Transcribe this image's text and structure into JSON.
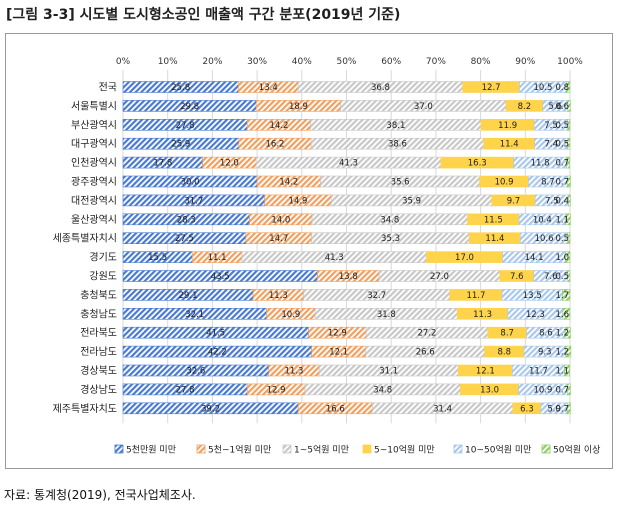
{
  "figure": {
    "title": "[그림 3-3] 시도별 도시형소공인 매출액 구간 분포(2019년 기준)",
    "source": "자료: 통계청(2019), 전국사업체조사."
  },
  "chart_data": {
    "type": "bar",
    "orientation": "horizontal",
    "stacked": true,
    "percent": true,
    "title": "[그림 3-3] 시도별 도시형소공인 매출액 구간 분포(2019년 기준)",
    "xlim": [
      0,
      100
    ],
    "x_ticks": [
      "0%",
      "10%",
      "20%",
      "30%",
      "40%",
      "50%",
      "60%",
      "70%",
      "80%",
      "90%",
      "100%"
    ],
    "grid": true,
    "legend_position": "bottom",
    "categories": [
      "전국",
      "서울특별시",
      "부산광역시",
      "대구광역시",
      "인천광역시",
      "광주광역시",
      "대전광역시",
      "울산광역시",
      "세종특별자치시",
      "경기도",
      "강원도",
      "충청북도",
      "충청남도",
      "전라북도",
      "전라남도",
      "경상북도",
      "경상남도",
      "제주특별자치도"
    ],
    "series": [
      {
        "name": "5천만원 미만",
        "color": "#4a7bd0",
        "pattern": "hatch",
        "values": [
          25.8,
          29.8,
          27.8,
          25.9,
          17.8,
          30.0,
          31.7,
          28.3,
          27.5,
          15.5,
          43.5,
          29.1,
          32.1,
          41.5,
          42.2,
          32.6,
          27.8,
          39.2
        ]
      },
      {
        "name": "5천~1억원 미만",
        "color": "#f0a060",
        "pattern": "hatch",
        "values": [
          13.4,
          18.9,
          14.2,
          16.2,
          12.0,
          14.2,
          14.9,
          14.0,
          14.7,
          11.1,
          13.8,
          11.3,
          10.9,
          12.9,
          12.1,
          11.3,
          12.9,
          16.6
        ]
      },
      {
        "name": "1~5억원 미만",
        "color": "#c8c8c8",
        "pattern": "hatch",
        "values": [
          36.8,
          37.0,
          38.1,
          38.6,
          41.3,
          35.6,
          35.9,
          34.8,
          35.3,
          41.3,
          27.0,
          32.7,
          31.8,
          27.2,
          26.6,
          31.1,
          34.8,
          31.4
        ]
      },
      {
        "name": "5~10억원 미만",
        "color": "#ffd34a",
        "pattern": "solid",
        "values": [
          12.7,
          8.2,
          11.9,
          11.4,
          16.3,
          10.9,
          9.7,
          11.5,
          11.4,
          17.0,
          7.6,
          11.7,
          11.3,
          8.7,
          8.8,
          12.1,
          13.0,
          6.3
        ]
      },
      {
        "name": "10~50억원 미만",
        "color": "#a9c8ec",
        "pattern": "hatch",
        "values": [
          10.5,
          5.6,
          7.5,
          7.4,
          11.8,
          8.7,
          7.5,
          10.4,
          10.6,
          14.1,
          7.6,
          13.5,
          12.3,
          8.6,
          9.3,
          11.7,
          10.9,
          5.9
        ]
      },
      {
        "name": "50억원 이상",
        "color": "#8fce6a",
        "pattern": "hatch",
        "values": [
          0.8,
          0.6,
          0.5,
          0.5,
          0.7,
          0.7,
          0.4,
          1.1,
          0.5,
          1.0,
          0.5,
          1.7,
          1.6,
          1.2,
          1.2,
          1.1,
          0.7,
          0.7
        ]
      }
    ]
  }
}
